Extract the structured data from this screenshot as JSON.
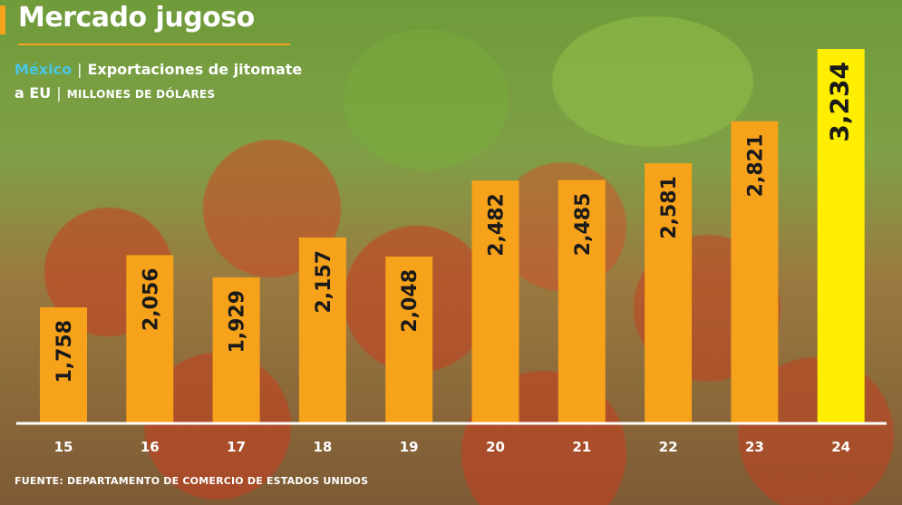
{
  "header": {
    "title": "Mercado jugoso",
    "subtitle_country": "México",
    "subtitle_line1": "Exportaciones de jitomate",
    "subtitle_line2": "a EU",
    "subtitle_unit": "MILLONES DE DÓLARES"
  },
  "footer": {
    "source": "FUENTE: DEPARTAMENTO DE COMERCIO DE ESTADOS UNIDOS"
  },
  "colors": {
    "accent": "#f7a21b",
    "highlight": "#ffee00",
    "country": "#49c6e5",
    "axis": "#ffffff"
  },
  "chart_data": {
    "type": "bar",
    "categories": [
      "15",
      "16",
      "17",
      "18",
      "19",
      "20",
      "21",
      "22",
      "23",
      "24"
    ],
    "values": [
      1758,
      2056,
      1929,
      2157,
      2048,
      2482,
      2485,
      2581,
      2821,
      3234
    ],
    "value_labels": [
      "1,758",
      "2,056",
      "1,929",
      "2,157",
      "2,048",
      "2,482",
      "2,485",
      "2,581",
      "2,821",
      "3,234"
    ],
    "highlight_index": 9,
    "ylim": [
      1100,
      3234
    ],
    "grid": false,
    "title": "",
    "xlabel": "",
    "ylabel": ""
  }
}
